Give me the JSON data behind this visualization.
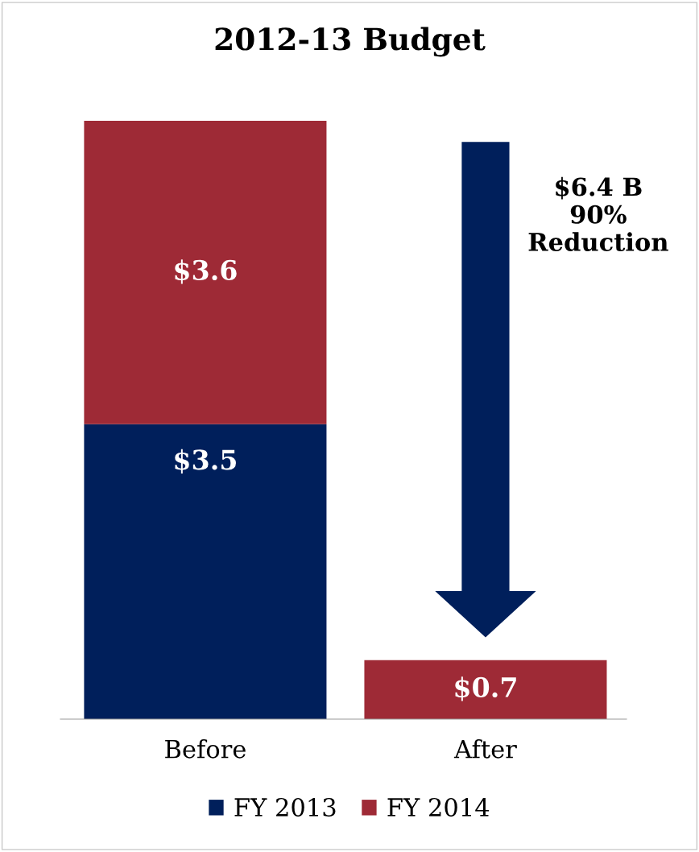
{
  "chart_data": {
    "type": "bar",
    "title": "2012-13 Budget",
    "categories": [
      "Before",
      "After"
    ],
    "stacked": true,
    "series": [
      {
        "name": "FY 2013",
        "color": "#001f5b",
        "values": [
          3.5,
          null
        ],
        "value_labels": [
          "$3.5",
          null
        ]
      },
      {
        "name": "FY 2014",
        "color": "#9e2a36",
        "values": [
          3.6,
          0.7
        ],
        "value_labels": [
          "$3.6",
          "$0.7"
        ]
      }
    ],
    "tick_labels": "x",
    "grid": false,
    "legend": "bottom",
    "annotations": [
      "$6.4 B\n90%\nReduction"
    ]
  }
}
